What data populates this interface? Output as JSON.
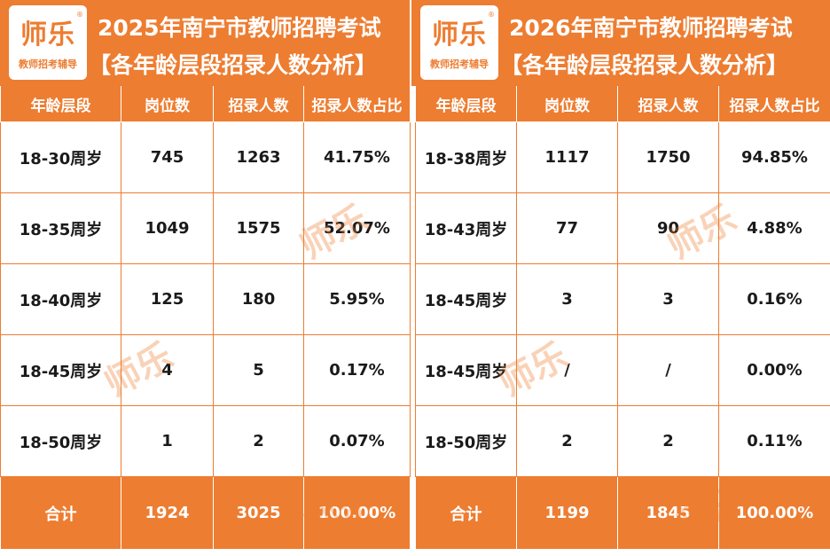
{
  "logo": {
    "main": "师乐",
    "sub": "教师招考辅导",
    "reg": "®"
  },
  "tables": [
    {
      "title": "2025年南宁市教师招聘考试",
      "subtitle": "【各年龄层段招录人数分析】",
      "headers": [
        "年龄层段",
        "岗位数",
        "招录人数",
        "招录人数占比"
      ],
      "rows": [
        [
          "18-30周岁",
          "745",
          "1263",
          "41.75%"
        ],
        [
          "18-35周岁",
          "1049",
          "1575",
          "52.07%"
        ],
        [
          "18-40周岁",
          "125",
          "180",
          "5.95%"
        ],
        [
          "18-45周岁",
          "4",
          "5",
          "0.17%"
        ],
        [
          "18-50周岁",
          "1",
          "2",
          "0.07%"
        ]
      ],
      "total": [
        "合计",
        "1924",
        "3025",
        "100.00%"
      ]
    },
    {
      "title": "2026年南宁市教师招聘考试",
      "subtitle": "【各年龄层段招录人数分析】",
      "headers": [
        "年龄层段",
        "岗位数",
        "招录人数",
        "招录人数占比"
      ],
      "rows": [
        [
          "18-38周岁",
          "1117",
          "1750",
          "94.85%"
        ],
        [
          "18-43周岁",
          "77",
          "90",
          "4.88%"
        ],
        [
          "18-45周岁",
          "3",
          "3",
          "0.16%"
        ],
        [
          "18-45周岁",
          "/",
          "/",
          "0.00%"
        ],
        [
          "18-50周岁",
          "2",
          "2",
          "0.11%"
        ]
      ],
      "total": [
        "合计",
        "1199",
        "1845",
        "100.00%"
      ]
    }
  ],
  "colors": {
    "accent": "#ed7d31",
    "text": "#1a1a1a",
    "header_text": "#ffffff"
  }
}
